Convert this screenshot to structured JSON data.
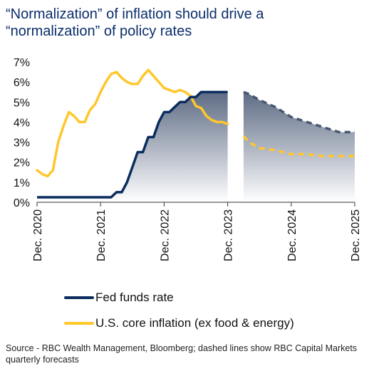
{
  "title": "“Normalization” of inflation should drive a “normalization” of policy rates",
  "source": "Source - RBC Wealth Management, Bloomberg; dashed lines show RBC Capital Markets quarterly forecasts",
  "colors": {
    "fed": "#0b2d5e",
    "inflation": "#ffc72c",
    "area_top": "#5d6b84",
    "area_bottom": "#ffffff"
  },
  "chart_data": {
    "type": "line",
    "ylim": [
      0,
      7
    ],
    "y_ticks": [
      "0%",
      "1%",
      "2%",
      "3%",
      "4%",
      "5%",
      "6%",
      "7%"
    ],
    "x_range": [
      2020.917,
      2025.917
    ],
    "x_ticks": [
      {
        "x": 2020.917,
        "label": "Dec. 2020"
      },
      {
        "x": 2021.917,
        "label": "Dec. 2021"
      },
      {
        "x": 2022.917,
        "label": "Dec. 2022"
      },
      {
        "x": 2023.917,
        "label": "Dec. 2023"
      },
      {
        "x": 2024.917,
        "label": "Dec. 2024"
      },
      {
        "x": 2025.917,
        "label": "Dec. 2025"
      }
    ],
    "legend": [
      "Fed funds rate",
      "U.S. core inflation (ex food & energy)"
    ],
    "series": [
      {
        "name": "Fed funds rate",
        "style": "solid",
        "points": [
          [
            2020.917,
            0.25
          ],
          [
            2021.0,
            0.25
          ],
          [
            2021.25,
            0.25
          ],
          [
            2021.5,
            0.25
          ],
          [
            2021.75,
            0.25
          ],
          [
            2022.0,
            0.25
          ],
          [
            2022.083,
            0.25
          ],
          [
            2022.167,
            0.5
          ],
          [
            2022.25,
            0.5
          ],
          [
            2022.333,
            1.0
          ],
          [
            2022.417,
            1.75
          ],
          [
            2022.5,
            2.5
          ],
          [
            2022.583,
            2.5
          ],
          [
            2022.667,
            3.25
          ],
          [
            2022.75,
            3.25
          ],
          [
            2022.833,
            4.0
          ],
          [
            2022.917,
            4.5
          ],
          [
            2023.0,
            4.5
          ],
          [
            2023.083,
            4.75
          ],
          [
            2023.167,
            5.0
          ],
          [
            2023.25,
            5.0
          ],
          [
            2023.333,
            5.25
          ],
          [
            2023.417,
            5.25
          ],
          [
            2023.5,
            5.5
          ],
          [
            2023.583,
            5.5
          ],
          [
            2023.667,
            5.5
          ],
          [
            2023.75,
            5.5
          ],
          [
            2023.833,
            5.5
          ],
          [
            2023.917,
            5.5
          ]
        ]
      },
      {
        "name": "U.S. core inflation (ex food & energy)",
        "style": "solid",
        "points": [
          [
            2020.917,
            1.6
          ],
          [
            2021.0,
            1.4
          ],
          [
            2021.083,
            1.3
          ],
          [
            2021.167,
            1.6
          ],
          [
            2021.25,
            3.0
          ],
          [
            2021.333,
            3.8
          ],
          [
            2021.417,
            4.5
          ],
          [
            2021.5,
            4.3
          ],
          [
            2021.583,
            4.0
          ],
          [
            2021.667,
            4.0
          ],
          [
            2021.75,
            4.6
          ],
          [
            2021.833,
            4.9
          ],
          [
            2021.917,
            5.5
          ],
          [
            2022.0,
            6.0
          ],
          [
            2022.083,
            6.4
          ],
          [
            2022.167,
            6.5
          ],
          [
            2022.25,
            6.2
          ],
          [
            2022.333,
            6.0
          ],
          [
            2022.417,
            5.9
          ],
          [
            2022.5,
            5.9
          ],
          [
            2022.583,
            6.3
          ],
          [
            2022.667,
            6.6
          ],
          [
            2022.75,
            6.3
          ],
          [
            2022.833,
            6.0
          ],
          [
            2022.917,
            5.7
          ],
          [
            2023.0,
            5.6
          ],
          [
            2023.083,
            5.5
          ],
          [
            2023.167,
            5.6
          ],
          [
            2023.25,
            5.5
          ],
          [
            2023.333,
            5.3
          ],
          [
            2023.417,
            4.8
          ],
          [
            2023.5,
            4.7
          ],
          [
            2023.583,
            4.3
          ],
          [
            2023.667,
            4.1
          ],
          [
            2023.75,
            4.0
          ],
          [
            2023.833,
            4.0
          ],
          [
            2023.917,
            3.9
          ]
        ]
      },
      {
        "name": "Fed funds rate forecast",
        "style": "dashed",
        "points": [
          [
            2024.167,
            5.5
          ],
          [
            2024.25,
            5.4
          ],
          [
            2024.417,
            5.1
          ],
          [
            2024.667,
            4.75
          ],
          [
            2024.917,
            4.25
          ],
          [
            2025.167,
            4.0
          ],
          [
            2025.417,
            3.75
          ],
          [
            2025.667,
            3.5
          ],
          [
            2025.917,
            3.5
          ]
        ]
      },
      {
        "name": "U.S. core inflation forecast",
        "style": "dashed",
        "points": [
          [
            2024.167,
            3.3
          ],
          [
            2024.25,
            3.0
          ],
          [
            2024.417,
            2.7
          ],
          [
            2024.667,
            2.6
          ],
          [
            2024.917,
            2.4
          ],
          [
            2025.167,
            2.4
          ],
          [
            2025.417,
            2.3
          ],
          [
            2025.667,
            2.3
          ],
          [
            2025.917,
            2.3
          ]
        ]
      }
    ]
  }
}
